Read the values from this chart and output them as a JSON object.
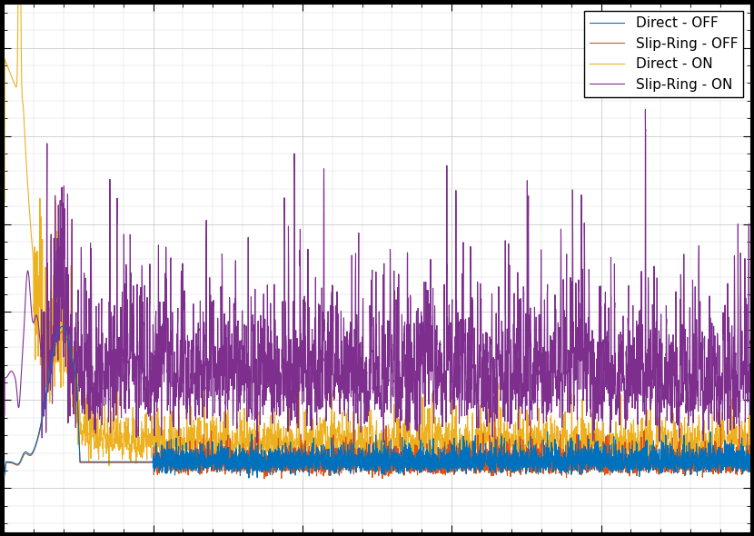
{
  "title": "",
  "xlabel": "",
  "ylabel": "",
  "legend": [
    "Direct - OFF",
    "Slip-Ring - OFF",
    "Direct - ON",
    "Slip-Ring - ON"
  ],
  "colors": [
    "#0072bd",
    "#d95319",
    "#edb120",
    "#7e2f8e"
  ],
  "line_width": 0.8,
  "grid_color": "#d3d3d3",
  "background_color": "#ffffff",
  "fig_background": "#000000",
  "xlim": [
    0,
    500
  ],
  "ylim": [
    -0.05,
    0.55
  ]
}
